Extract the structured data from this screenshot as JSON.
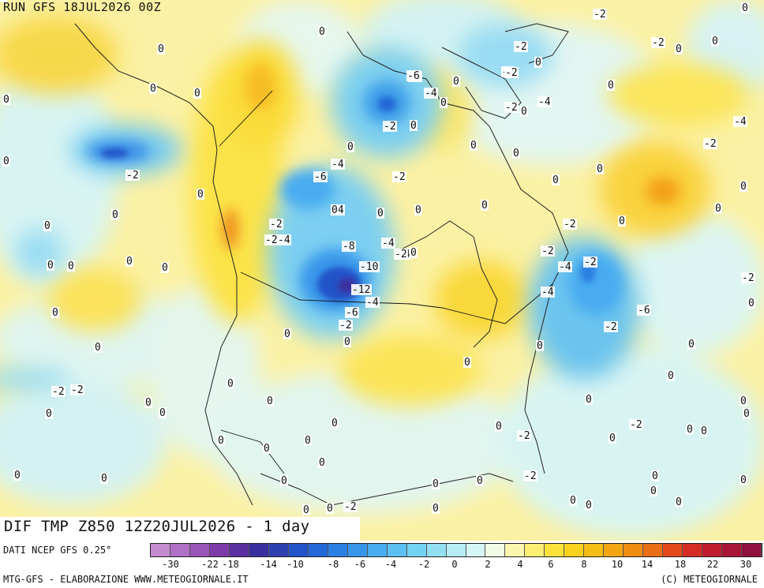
{
  "header": {
    "run_label": "RUN GFS 18JUL2026 00Z"
  },
  "title": {
    "text": "DIF TMP Z850 12Z20JUL2026 - 1 day"
  },
  "footer": {
    "source": "DATI NCEP GFS 0.25°",
    "credit_left": "MTG-GFS - ELABORAZIONE WWW.METEOGIORNALE.IT",
    "credit_right": "(C) METEOGIORNALE"
  },
  "legend": {
    "colors": [
      "#c48bd0",
      "#b070c6",
      "#9a55b8",
      "#7e3aa8",
      "#5a2fa0",
      "#3a2f9e",
      "#2e3fb0",
      "#2452c8",
      "#2468d8",
      "#2a80e2",
      "#3796ea",
      "#48acf0",
      "#5cc0f2",
      "#74d2f2",
      "#92e0f2",
      "#b6ecf4",
      "#d6f6f6",
      "#f2fbe6",
      "#fbf6ae",
      "#fcee72",
      "#fbe23a",
      "#f8d21c",
      "#f6bd16",
      "#f3a614",
      "#ef8c12",
      "#ea6e16",
      "#e24a1c",
      "#d62c26",
      "#c01c30",
      "#a81638",
      "#90123e"
    ],
    "tick_labels": [
      {
        "label": "-30",
        "value": -30
      },
      {
        "label": "-22",
        "value": -22
      },
      {
        "label": "-18",
        "value": -18
      },
      {
        "label": "-14",
        "value": -14
      },
      {
        "label": "-10",
        "value": -10
      },
      {
        "label": "-8",
        "value": -8
      },
      {
        "label": "-6",
        "value": -6
      },
      {
        "label": "-4",
        "value": -4
      },
      {
        "label": "-2",
        "value": -2
      },
      {
        "label": "0",
        "value": 0
      },
      {
        "label": "2",
        "value": 2
      },
      {
        "label": "4",
        "value": 4
      },
      {
        "label": "6",
        "value": 6
      },
      {
        "label": "8",
        "value": 8
      },
      {
        "label": "10",
        "value": 10
      },
      {
        "label": "14",
        "value": 14
      },
      {
        "label": "18",
        "value": 18
      },
      {
        "label": "22",
        "value": 22
      },
      {
        "label": "30",
        "value": 30
      }
    ]
  },
  "contour_labels": [
    "0",
    "-2",
    "0",
    "0",
    "-2",
    "0",
    "0",
    "0",
    "0",
    "0",
    "0",
    "-2",
    "0",
    "0",
    "-6",
    "0",
    "-2",
    "0",
    "-2",
    "0",
    "-4",
    "0",
    "-4",
    "-2",
    "-2",
    "0",
    "0",
    "0",
    "0",
    "0",
    "0",
    "0",
    "-4",
    "-2",
    "-2",
    "0",
    "0",
    "0",
    "0",
    "0",
    "0",
    "0",
    "-4",
    "0",
    "0",
    "0",
    "0",
    "0",
    "0",
    "0",
    "0",
    "0",
    "0",
    "-6",
    "-2",
    "-6",
    "-2",
    "0",
    "-4",
    "0",
    "-2",
    "-4",
    "0",
    "-8",
    "-10",
    "-12",
    "-4",
    "-6",
    "-2",
    "-4",
    "-4",
    "-2",
    "0",
    "-2",
    "-2",
    "-4",
    "-2",
    "-6",
    "-2",
    "-4",
    "0",
    "-2",
    "0",
    "0",
    "0",
    "-2",
    "0",
    "0",
    "0",
    "0",
    "-2",
    "0",
    "0",
    "-2",
    "0",
    "0",
    "0",
    "0",
    "0",
    "0",
    "0",
    "0",
    "0",
    "0",
    "0",
    "0",
    "0",
    "0",
    "-2",
    "0",
    "0",
    "0",
    "0",
    "0",
    "0",
    "0",
    "-2",
    "0",
    "0",
    "0",
    "-2",
    "0",
    "0",
    "0",
    "0",
    "0",
    "0",
    "0"
  ]
}
